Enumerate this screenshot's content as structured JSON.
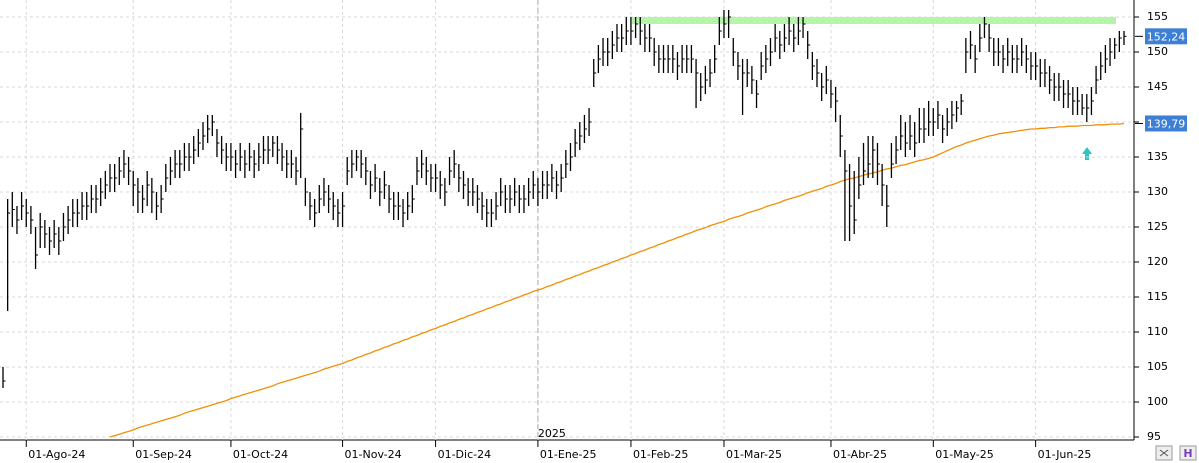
{
  "chart_data": {
    "type": "ohlc",
    "categories": [
      null,
      null,
      null,
      null,
      null,
      "01-Ago-24",
      null,
      null,
      null,
      null,
      null,
      null,
      null,
      null,
      null,
      null,
      null,
      null,
      null,
      null,
      null,
      null,
      null,
      null,
      null,
      null,
      null,
      null,
      "01-Sep-24",
      null,
      null,
      null,
      null,
      null,
      null,
      null,
      null,
      null,
      null,
      null,
      null,
      null,
      null,
      null,
      null,
      null,
      null,
      null,
      null,
      "01-Oct-24",
      null,
      null,
      null,
      null,
      null,
      null,
      null,
      null,
      null,
      null,
      null,
      null,
      null,
      null,
      null,
      null,
      null,
      null,
      null,
      null,
      null,
      null,
      null,
      "01-Nov-24",
      null,
      null,
      null,
      null,
      null,
      null,
      null,
      null,
      null,
      null,
      null,
      null,
      null,
      null,
      null,
      null,
      null,
      null,
      null,
      "01-Dic-24",
      null,
      null,
      null,
      null,
      null,
      null,
      null,
      null,
      null,
      null,
      null,
      null,
      null,
      null,
      null,
      null,
      null,
      null,
      null,
      null,
      null,
      "01-Ene-25",
      null,
      null,
      null,
      null,
      null,
      null,
      null,
      null,
      null,
      null,
      null,
      null,
      null,
      null,
      null,
      null,
      null,
      null,
      null,
      "01-Feb-25",
      null,
      null,
      null,
      null,
      null,
      null,
      null,
      null,
      null,
      null,
      null,
      null,
      null,
      null,
      null,
      null,
      null,
      null,
      null,
      "01-Mar-25",
      null,
      null,
      null,
      null,
      null,
      null,
      null,
      null,
      null,
      null,
      null,
      null,
      null,
      null,
      null,
      null,
      null,
      null,
      null,
      null,
      null,
      null,
      "01-Abr-25",
      null,
      null,
      null,
      null,
      null,
      null,
      null,
      null,
      null,
      null,
      null,
      null,
      null,
      null,
      null,
      null,
      null,
      null,
      null,
      null,
      null,
      "01-May-25",
      null,
      null,
      null,
      null,
      null,
      null,
      null,
      null,
      null,
      null,
      null,
      null,
      null,
      null,
      null,
      null,
      null,
      null,
      null,
      null,
      null,
      "01-Jun-25",
      null,
      null,
      null,
      null,
      null,
      null,
      null,
      null,
      null,
      null,
      null,
      null,
      null,
      null,
      null,
      null,
      null,
      null,
      null
    ],
    "ohlc": {
      "color": "#000000",
      "high": [
        105,
        129,
        130,
        128,
        130,
        129,
        128,
        125,
        127,
        126,
        125,
        126,
        125,
        127,
        128,
        129,
        129,
        130,
        130,
        131,
        131,
        132,
        133,
        134,
        134,
        135,
        136,
        135,
        133,
        132,
        131,
        133,
        132,
        130,
        131,
        134,
        135,
        136,
        136,
        137,
        137,
        138,
        139,
        140,
        141,
        141,
        139,
        138,
        137,
        137,
        136,
        137,
        136,
        137,
        136,
        137,
        138,
        138,
        138,
        138,
        137,
        136,
        136,
        135,
        141.3,
        132,
        130,
        129,
        131,
        132,
        131,
        130,
        129,
        130,
        135,
        136,
        136,
        136,
        135,
        133,
        134,
        132,
        133,
        131,
        130,
        130,
        129,
        130,
        131,
        135,
        136,
        135,
        134,
        134,
        133,
        132,
        135,
        136,
        134,
        133,
        132,
        132,
        131,
        130,
        129,
        129,
        130,
        132,
        131,
        131,
        132,
        131,
        131,
        132,
        133,
        132,
        133,
        133,
        134,
        133,
        134,
        136,
        137,
        139,
        140,
        141,
        142,
        149,
        151,
        152,
        152,
        153,
        154,
        154,
        155,
        155,
        155,
        155,
        154,
        154,
        152,
        151,
        151,
        151,
        151,
        150,
        151,
        151,
        151,
        149,
        147,
        148,
        149,
        151,
        155,
        156,
        156,
        152,
        150,
        149,
        149,
        148,
        146,
        150,
        151,
        152,
        154,
        153,
        154,
        155,
        154,
        155,
        155,
        153,
        150,
        149,
        147,
        148,
        146,
        145,
        141,
        136,
        134,
        133,
        135,
        137,
        138,
        138,
        137,
        134,
        131,
        137,
        138,
        141,
        140,
        141,
        140,
        142,
        142,
        143,
        142,
        143,
        141,
        142,
        143,
        143,
        144,
        152,
        153,
        151,
        154,
        155,
        154,
        152,
        152,
        151,
        152,
        151,
        151,
        152,
        151,
        150,
        150,
        149,
        149,
        148,
        147,
        147,
        146,
        146,
        145,
        145,
        144,
        144,
        145,
        148,
        150,
        151,
        152,
        152,
        153,
        153
      ],
      "low": [
        102,
        113,
        125,
        124,
        126,
        125,
        124,
        119,
        122,
        122,
        121,
        122,
        121,
        123,
        124,
        125,
        125,
        126,
        126,
        127,
        127,
        128,
        129,
        130,
        130,
        131,
        132,
        131,
        128,
        127,
        127,
        128,
        127,
        126,
        127,
        130,
        131,
        132,
        132,
        133,
        133,
        134,
        135,
        136,
        137,
        138,
        135,
        134,
        133,
        133,
        132,
        133,
        132,
        133,
        132,
        133,
        134,
        134,
        135,
        134,
        133,
        132,
        132,
        131,
        132,
        128,
        126,
        125,
        127,
        128,
        127,
        126,
        125,
        125,
        131,
        132,
        133,
        132,
        131,
        129,
        130,
        128,
        129,
        127,
        126,
        126,
        125,
        126,
        127,
        131,
        132,
        131,
        130,
        130,
        129,
        128,
        131,
        132,
        130,
        129,
        128,
        128,
        127,
        126,
        125,
        125,
        126,
        128,
        127,
        127,
        128,
        127,
        127,
        128,
        129,
        128,
        129,
        129,
        130,
        129,
        130,
        132,
        133,
        135,
        136,
        137,
        138,
        145,
        147,
        148,
        148,
        149,
        150,
        150,
        151,
        151,
        152,
        151,
        150,
        150,
        148,
        147,
        147,
        147,
        147,
        146,
        147,
        147,
        147,
        142,
        143,
        144,
        145,
        147,
        151,
        152,
        152,
        148,
        146,
        141,
        145,
        144,
        142,
        146,
        147,
        148,
        150,
        149,
        150,
        151,
        150,
        151,
        152,
        149,
        146,
        145,
        143,
        144,
        142,
        140,
        135,
        123,
        123,
        124,
        129,
        131,
        132,
        132,
        131,
        128,
        125,
        132,
        134,
        136,
        135,
        136,
        135,
        137,
        137,
        138,
        138,
        139,
        137,
        138,
        139,
        140,
        141,
        147,
        149,
        147,
        150,
        152,
        150,
        148,
        148,
        147,
        148,
        147,
        147,
        148,
        147,
        146,
        146,
        145,
        145,
        144,
        143,
        143,
        142,
        142,
        141,
        141,
        141,
        140,
        141,
        144,
        146,
        147,
        148,
        149,
        150,
        151
      ],
      "close": [
        103,
        127,
        127.5,
        126,
        128,
        127,
        126,
        121,
        125,
        124,
        123,
        124,
        123,
        125,
        126,
        127,
        127,
        128,
        128,
        129,
        129,
        130,
        131,
        132,
        132,
        133,
        134,
        133,
        131,
        130,
        129,
        131,
        130,
        128,
        129,
        132,
        133,
        134,
        134,
        135,
        135,
        136,
        137,
        138,
        139,
        140,
        137,
        136,
        135,
        135,
        134,
        135,
        134,
        135,
        134,
        135,
        136,
        136,
        137,
        136,
        135,
        134,
        134,
        133,
        139,
        130,
        128,
        127,
        129,
        130,
        129,
        128,
        127,
        128,
        133,
        134,
        135,
        134,
        133,
        131,
        132,
        130,
        131,
        129,
        128,
        128,
        127,
        128,
        129,
        133,
        134,
        133,
        132,
        132,
        131,
        130,
        133,
        134,
        132,
        131,
        130,
        130,
        129,
        128,
        127,
        127,
        128,
        130,
        129,
        129,
        130,
        129,
        129,
        130,
        131,
        130,
        131,
        131,
        132,
        131,
        132,
        134,
        135,
        137,
        138,
        139,
        140,
        147,
        149,
        150,
        150,
        151,
        152,
        152,
        153,
        153,
        154,
        153,
        152,
        152,
        150,
        149,
        149,
        149,
        149,
        148,
        149,
        149,
        149,
        147,
        145,
        146,
        147,
        149,
        153,
        154,
        155,
        150,
        148,
        147,
        147,
        146,
        144,
        148,
        149,
        150,
        152,
        151,
        152,
        153,
        152,
        153,
        154,
        151,
        148,
        147,
        145,
        146,
        144,
        143,
        138,
        133,
        128,
        126,
        131,
        133,
        134,
        136,
        134,
        131,
        128,
        134,
        136,
        138,
        137,
        138,
        137,
        139,
        139,
        140,
        140,
        141,
        139,
        140,
        141,
        142,
        143,
        150,
        151,
        149,
        152,
        154,
        152,
        150,
        150,
        149,
        150,
        149,
        149,
        150,
        149,
        148,
        148,
        147,
        147,
        146,
        145,
        145,
        144,
        144,
        143,
        143,
        142,
        142,
        143,
        146,
        148,
        149,
        150,
        151,
        152,
        152.24
      ]
    },
    "close_label": "152,24",
    "ma": {
      "color": "#f0900a",
      "values": [
        null,
        null,
        null,
        null,
        null,
        null,
        null,
        null,
        null,
        null,
        null,
        null,
        null,
        null,
        null,
        null,
        null,
        null,
        null,
        null,
        null,
        null,
        null,
        95.0,
        95.2,
        95.4,
        95.6,
        95.8,
        96.0,
        96.3,
        96.5,
        96.7,
        96.9,
        97.1,
        97.3,
        97.5,
        97.7,
        97.9,
        98.1,
        98.4,
        98.6,
        98.8,
        99.0,
        99.2,
        99.4,
        99.6,
        99.8,
        100.0,
        100.2,
        100.5,
        100.7,
        100.9,
        101.1,
        101.3,
        101.5,
        101.7,
        101.9,
        102.1,
        102.3,
        102.6,
        102.8,
        103.0,
        103.2,
        103.4,
        103.6,
        103.8,
        104.0,
        104.2,
        104.4,
        104.7,
        104.9,
        105.1,
        105.3,
        105.5,
        105.8,
        106.0,
        106.3,
        106.5,
        106.8,
        107.0,
        107.3,
        107.5,
        107.8,
        108.0,
        108.3,
        108.5,
        108.8,
        109.0,
        109.3,
        109.5,
        109.8,
        110.0,
        110.3,
        110.5,
        110.8,
        111.0,
        111.3,
        111.5,
        111.8,
        112.0,
        112.3,
        112.5,
        112.8,
        113.0,
        113.3,
        113.5,
        113.8,
        114.0,
        114.3,
        114.5,
        114.8,
        115.0,
        115.3,
        115.5,
        115.8,
        116.0,
        116.2,
        116.5,
        116.7,
        117.0,
        117.2,
        117.5,
        117.7,
        118.0,
        118.2,
        118.5,
        118.7,
        119.0,
        119.2,
        119.5,
        119.7,
        120.0,
        120.2,
        120.5,
        120.7,
        121.0,
        121.2,
        121.5,
        121.7,
        122.0,
        122.2,
        122.5,
        122.7,
        123.0,
        123.2,
        123.5,
        123.7,
        124.0,
        124.2,
        124.5,
        124.7,
        124.9,
        125.2,
        125.4,
        125.6,
        125.8,
        126.1,
        126.3,
        126.5,
        126.7,
        127.0,
        127.2,
        127.4,
        127.6,
        127.9,
        128.1,
        128.3,
        128.5,
        128.8,
        129.0,
        129.2,
        129.4,
        129.6,
        129.9,
        130.1,
        130.3,
        130.5,
        130.8,
        131.0,
        131.2,
        131.5,
        131.7,
        131.9,
        132.0,
        132.2,
        132.4,
        132.6,
        132.7,
        132.9,
        133.1,
        133.3,
        133.4,
        133.6,
        133.8,
        133.9,
        134.1,
        134.3,
        134.5,
        134.6,
        134.8,
        135.0,
        135.3,
        135.6,
        135.9,
        136.2,
        136.5,
        136.7,
        137.0,
        137.2,
        137.4,
        137.6,
        137.8,
        138.0,
        138.1,
        138.3,
        138.4,
        138.5,
        138.6,
        138.7,
        138.8,
        138.9,
        139.0,
        139.0,
        139.1,
        139.1,
        139.2,
        139.2,
        139.3,
        139.3,
        139.4,
        139.4,
        139.4,
        139.5,
        139.5,
        139.5,
        139.6,
        139.6,
        139.6,
        139.7,
        139.7,
        139.7,
        139.79
      ]
    },
    "ma_label": "139,79",
    "band": {
      "from": 154,
      "to": 155,
      "color": "#b4f5a8"
    },
    "year_label": "2025",
    "ylim": [
      95,
      155.5
    ],
    "yticks": [
      95,
      100,
      105,
      110,
      115,
      120,
      125,
      130,
      135,
      140,
      145,
      150,
      155
    ],
    "grid": true
  }
}
